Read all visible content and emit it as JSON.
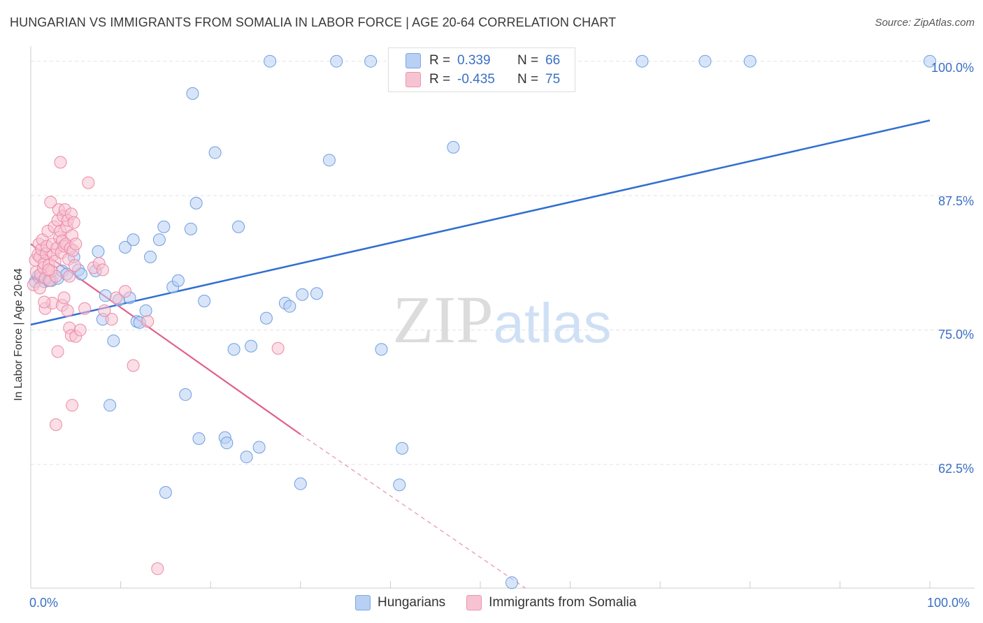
{
  "title": "HUNGARIAN VS IMMIGRANTS FROM SOMALIA IN LABOR FORCE | AGE 20-64 CORRELATION CHART",
  "source": "Source: ZipAtlas.com",
  "watermark": "ZIPatlas",
  "colors": {
    "blue_fill": "#b8d0f4",
    "blue_line": "#2f6fd1",
    "pink_fill": "#f7c3d2",
    "pink_line": "#e0608c",
    "axis_text": "#3a6fc4",
    "grid": "#e3e3e3"
  },
  "legend_box": {
    "rows": [
      {
        "r_label": "R =",
        "r_value": "0.339",
        "n_label": "N =",
        "n_value": "66"
      },
      {
        "r_label": "R =",
        "r_value": "-0.435",
        "n_label": "N =",
        "n_value": "75"
      }
    ]
  },
  "bottom_legend": {
    "items": [
      "Hungarians",
      "Immigrants from Somalia"
    ]
  },
  "axes": {
    "ylabel": "In Labor Force | Age 20-64",
    "x_left_label": "0.0%",
    "x_right_label": "100.0%",
    "y_ticks": [
      "100.0%",
      "87.5%",
      "75.0%",
      "62.5%"
    ]
  },
  "chart_data": {
    "type": "scatter",
    "title": "HUNGARIAN VS IMMIGRANTS FROM SOMALIA IN LABOR FORCE | AGE 20-64 CORRELATION CHART",
    "xlabel": "",
    "ylabel": "In Labor Force | Age 20-64",
    "xlim": [
      0,
      100
    ],
    "ylim": [
      51,
      100.5
    ],
    "y_gridlines": [
      100,
      87.5,
      75,
      62.5
    ],
    "legend_placement": "top-center",
    "series": [
      {
        "name": "Hungarians",
        "color": "#b8d0f4",
        "trend": {
          "x": [
            0,
            100
          ],
          "y": [
            75.5,
            94.5
          ],
          "style": "solid"
        },
        "points": [
          [
            0.5,
            79.5
          ],
          [
            0.8,
            80.0
          ],
          [
            1.0,
            79.8
          ],
          [
            1.5,
            79.5
          ],
          [
            2.0,
            79.6
          ],
          [
            2.3,
            79.6
          ],
          [
            3.0,
            79.8
          ],
          [
            3.5,
            80.5
          ],
          [
            4.0,
            80.2
          ],
          [
            4.8,
            81.8
          ],
          [
            5.3,
            80.6
          ],
          [
            5.6,
            80.2
          ],
          [
            7.2,
            80.5
          ],
          [
            7.5,
            82.3
          ],
          [
            8.0,
            76.0
          ],
          [
            8.3,
            78.2
          ],
          [
            8.8,
            68.0
          ],
          [
            9.2,
            74.0
          ],
          [
            9.8,
            77.8
          ],
          [
            10.5,
            82.7
          ],
          [
            11.0,
            78.0
          ],
          [
            11.4,
            83.4
          ],
          [
            11.8,
            75.8
          ],
          [
            12.1,
            75.7
          ],
          [
            12.8,
            76.8
          ],
          [
            13.3,
            81.8
          ],
          [
            14.3,
            83.4
          ],
          [
            14.8,
            84.6
          ],
          [
            15.0,
            59.9
          ],
          [
            15.8,
            79.0
          ],
          [
            16.4,
            79.6
          ],
          [
            17.2,
            69.0
          ],
          [
            17.8,
            84.4
          ],
          [
            18.0,
            97.0
          ],
          [
            18.4,
            86.8
          ],
          [
            18.7,
            64.9
          ],
          [
            19.3,
            77.7
          ],
          [
            20.5,
            91.5
          ],
          [
            21.6,
            65.0
          ],
          [
            21.8,
            64.5
          ],
          [
            22.6,
            73.2
          ],
          [
            23.1,
            84.6
          ],
          [
            24.0,
            63.2
          ],
          [
            24.5,
            73.5
          ],
          [
            25.4,
            64.1
          ],
          [
            26.2,
            76.1
          ],
          [
            26.6,
            100.0
          ],
          [
            28.3,
            77.5
          ],
          [
            28.8,
            77.2
          ],
          [
            30.0,
            60.7
          ],
          [
            30.2,
            78.3
          ],
          [
            31.8,
            78.4
          ],
          [
            33.2,
            90.8
          ],
          [
            34.0,
            100.0
          ],
          [
            37.8,
            100.0
          ],
          [
            39.0,
            73.2
          ],
          [
            41.0,
            60.6
          ],
          [
            41.3,
            64.0
          ],
          [
            47.0,
            92.0
          ],
          [
            50.0,
            100.0
          ],
          [
            53.5,
            51.5
          ],
          [
            57.5,
            100.0
          ],
          [
            68.0,
            100.0
          ],
          [
            75.0,
            100.0
          ],
          [
            80.0,
            100.0
          ],
          [
            100.0,
            100.0
          ]
        ]
      },
      {
        "name": "Immigrants from Somalia",
        "color": "#f7c3d2",
        "trend": {
          "x": [
            0,
            30
          ],
          "y": [
            83.0,
            65.3
          ],
          "style": "solid",
          "dashed_extension_to": [
            55,
            51.0
          ]
        },
        "points": [
          [
            0.3,
            79.2
          ],
          [
            0.5,
            81.5
          ],
          [
            0.6,
            80.4
          ],
          [
            0.8,
            82.0
          ],
          [
            0.9,
            83.0
          ],
          [
            1.0,
            81.8
          ],
          [
            1.1,
            80.2
          ],
          [
            1.2,
            82.5
          ],
          [
            1.3,
            83.4
          ],
          [
            1.4,
            80.8
          ],
          [
            1.5,
            81.2
          ],
          [
            1.6,
            79.8
          ],
          [
            1.7,
            82.1
          ],
          [
            1.8,
            82.8
          ],
          [
            1.9,
            84.2
          ],
          [
            2.0,
            81.0
          ],
          [
            2.1,
            79.6
          ],
          [
            2.2,
            86.9
          ],
          [
            2.3,
            80.5
          ],
          [
            2.4,
            83.0
          ],
          [
            2.5,
            82.0
          ],
          [
            2.6,
            84.6
          ],
          [
            2.7,
            81.4
          ],
          [
            2.8,
            80.0
          ],
          [
            2.9,
            82.6
          ],
          [
            3.0,
            85.2
          ],
          [
            3.1,
            86.2
          ],
          [
            3.2,
            83.6
          ],
          [
            3.3,
            84.2
          ],
          [
            3.4,
            82.2
          ],
          [
            3.5,
            83.3
          ],
          [
            3.6,
            85.6
          ],
          [
            3.7,
            82.8
          ],
          [
            3.8,
            86.2
          ],
          [
            3.9,
            83.0
          ],
          [
            4.0,
            84.6
          ],
          [
            4.1,
            85.2
          ],
          [
            4.2,
            81.6
          ],
          [
            4.3,
            80.0
          ],
          [
            4.4,
            82.6
          ],
          [
            4.5,
            85.8
          ],
          [
            4.6,
            83.8
          ],
          [
            4.7,
            82.4
          ],
          [
            4.8,
            85.0
          ],
          [
            4.9,
            81.0
          ],
          [
            5.0,
            83.0
          ],
          [
            1.6,
            77.0
          ],
          [
            2.4,
            77.5
          ],
          [
            3.0,
            73.0
          ],
          [
            3.3,
            90.6
          ],
          [
            3.5,
            77.3
          ],
          [
            3.7,
            78.0
          ],
          [
            4.1,
            76.8
          ],
          [
            4.3,
            75.2
          ],
          [
            4.5,
            74.5
          ],
          [
            4.6,
            68.0
          ],
          [
            5.0,
            74.4
          ],
          [
            5.5,
            75.0
          ],
          [
            6.0,
            77.0
          ],
          [
            6.4,
            88.7
          ],
          [
            7.0,
            80.8
          ],
          [
            7.6,
            81.2
          ],
          [
            8.0,
            80.6
          ],
          [
            9.0,
            76.0
          ],
          [
            9.5,
            78.0
          ],
          [
            10.5,
            78.6
          ],
          [
            11.4,
            71.7
          ],
          [
            13.0,
            75.8
          ],
          [
            14.1,
            52.8
          ],
          [
            27.5,
            73.3
          ],
          [
            1.5,
            77.6
          ],
          [
            2.8,
            66.2
          ],
          [
            1.0,
            78.9
          ],
          [
            2.0,
            80.6
          ],
          [
            8.2,
            76.8
          ]
        ]
      }
    ]
  }
}
